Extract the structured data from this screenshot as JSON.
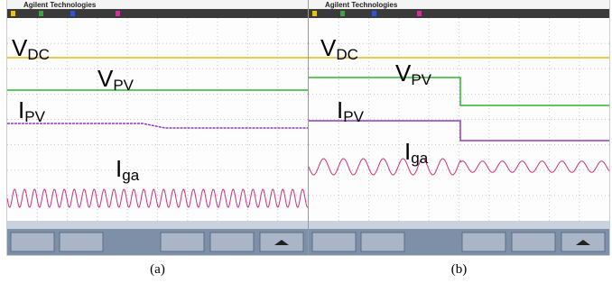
{
  "panels": [
    {
      "brand": "Agilent Technologies",
      "labels": [
        {
          "main": "V",
          "sub": "DC"
        },
        {
          "main": "V",
          "sub": "PV"
        },
        {
          "main": "I",
          "sub": "PV"
        },
        {
          "main": "I",
          "sub": "ga"
        }
      ],
      "caption": "(a)"
    },
    {
      "brand": "Agilent Technologies",
      "labels": [
        {
          "main": "V",
          "sub": "DC"
        },
        {
          "main": "V",
          "sub": "PV"
        },
        {
          "main": "I",
          "sub": "PV"
        },
        {
          "main": "I",
          "sub": "ga"
        }
      ],
      "caption": "(b)"
    }
  ]
}
